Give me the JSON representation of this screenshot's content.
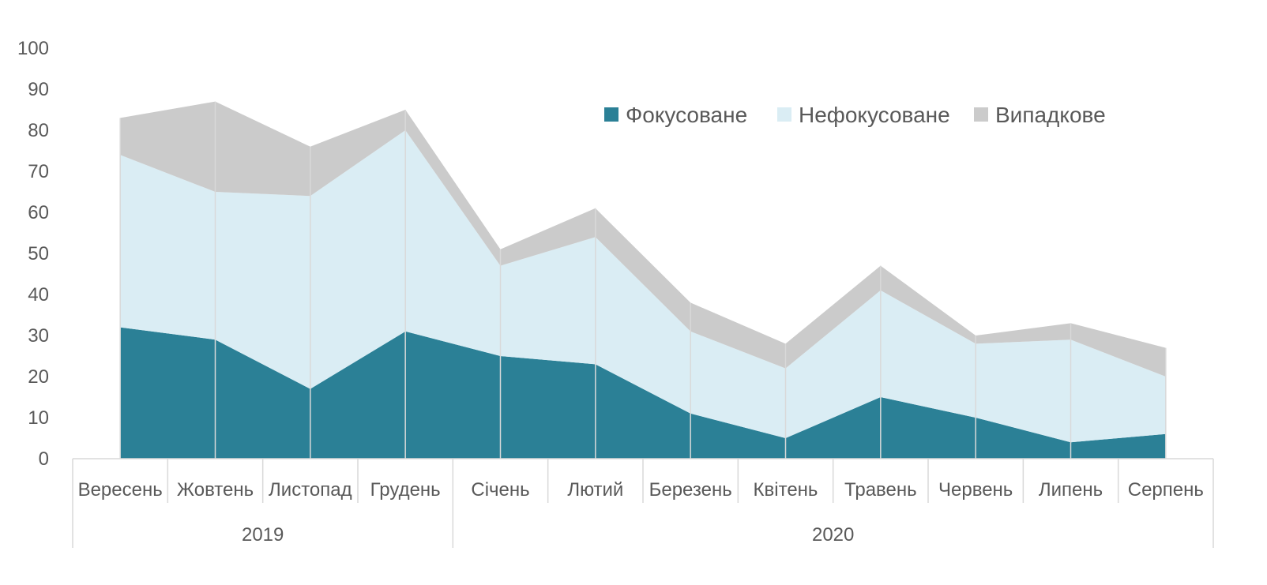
{
  "chart_data": {
    "type": "area",
    "stacked": true,
    "categories": [
      "Вересень",
      "Жовтень",
      "Листопад",
      "Грудень",
      "Січень",
      "Лютий",
      "Березень",
      "Квітень",
      "Травень",
      "Червень",
      "Липень",
      "Серпень"
    ],
    "year_groups": [
      {
        "label": "2019",
        "span": 4
      },
      {
        "label": "2020",
        "span": 8
      }
    ],
    "series": [
      {
        "name": "Фокусоване",
        "color": "#2B8096",
        "values": [
          32,
          29,
          17,
          31,
          25,
          23,
          11,
          5,
          15,
          10,
          4,
          6
        ]
      },
      {
        "name": "Нефокусоване",
        "color": "#DAEDF4",
        "values": [
          42,
          36,
          47,
          49,
          22,
          31,
          20,
          17,
          26,
          18,
          25,
          14
        ]
      },
      {
        "name": "Випадкове",
        "color": "#CBCBCB",
        "values": [
          9,
          22,
          12,
          5,
          4,
          7,
          7,
          6,
          6,
          2,
          4,
          7
        ]
      }
    ],
    "ylim": [
      0,
      100
    ],
    "yticks": [
      "0",
      "10",
      "20",
      "30",
      "40",
      "50",
      "60",
      "70",
      "80",
      "90",
      "100"
    ],
    "grid": false,
    "legend_position": "top-right"
  }
}
